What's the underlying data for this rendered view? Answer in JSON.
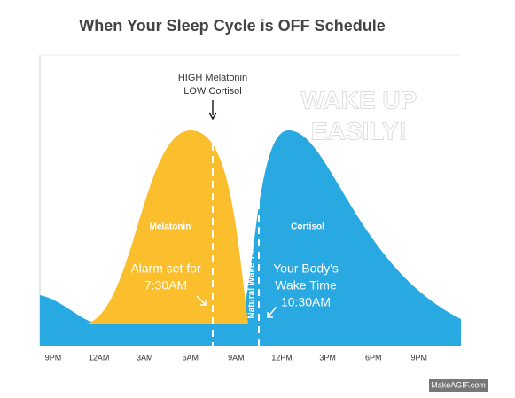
{
  "header": {
    "title": "When Your Sleep Cycle is OFF Schedule"
  },
  "annotations": {
    "peak_note": [
      "HIGH Melatonin",
      "LOW Cortisol"
    ],
    "wake_up": [
      "WAKE UP",
      "EASILY!"
    ],
    "melatonin": "Melatonin",
    "cortisol": "Cortisol",
    "alarm": [
      "Alarm set for",
      "7:30AM"
    ],
    "natural_wake": "Natural Wake Time",
    "body_wake": [
      "Your Body's",
      "Wake Time",
      "10:30AM"
    ]
  },
  "x_axis_labels": [
    "9PM",
    "12AM",
    "3AM",
    "6AM",
    "9AM",
    "12PM",
    "3PM",
    "6PM",
    "9PM"
  ],
  "watermark": "MakeAGIF.com"
}
